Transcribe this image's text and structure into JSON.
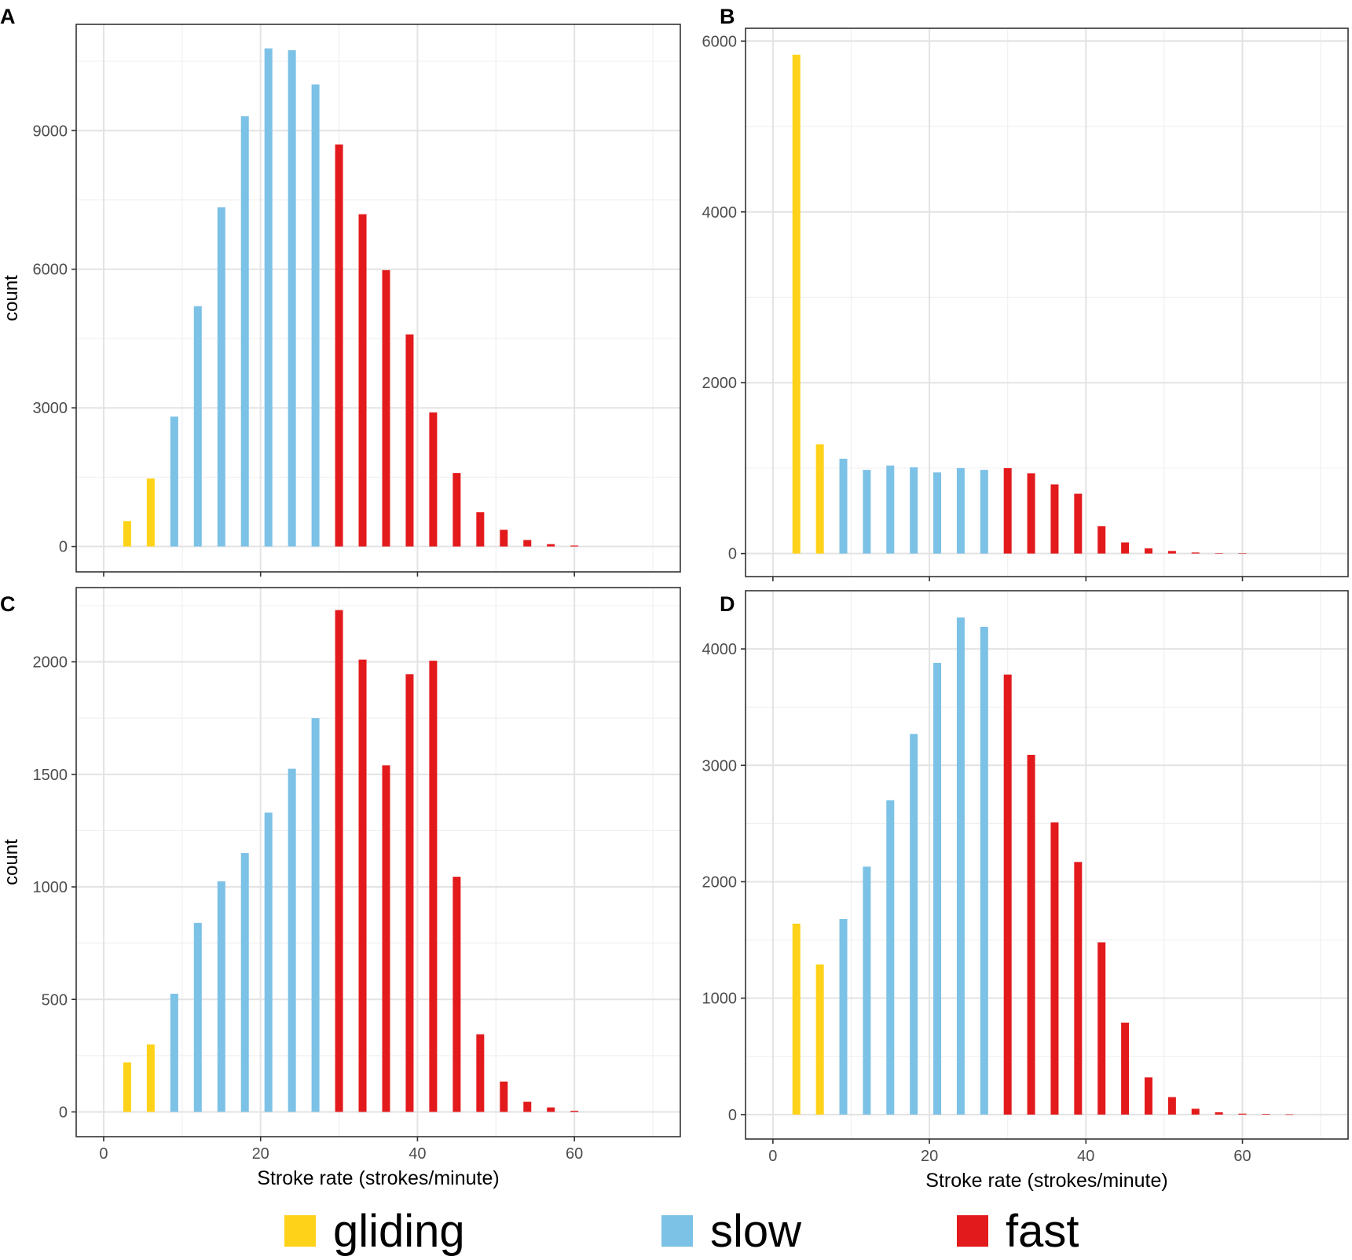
{
  "colors": {
    "gliding": "#FFD21A",
    "slow": "#7CC1E6",
    "fast": "#E31A1C"
  },
  "legend": [
    {
      "key": "gliding",
      "label": "gliding"
    },
    {
      "key": "slow",
      "label": "slow"
    },
    {
      "key": "fast",
      "label": "fast"
    }
  ],
  "chart_data": [
    {
      "panel": "A",
      "type": "bar",
      "xlabel": "",
      "ylabel": "count",
      "xlim": [
        -3.5,
        73.5
      ],
      "ylim": [
        -550,
        11300
      ],
      "xticks": [
        0,
        20,
        40,
        60
      ],
      "xtick_labels": false,
      "yticks": [
        0,
        3000,
        6000,
        9000
      ],
      "ytick_labels": [
        "0",
        "3000",
        "6000",
        "9000"
      ],
      "x": [
        3,
        6,
        9,
        12,
        15,
        18,
        21,
        24,
        27,
        30,
        33,
        36,
        39,
        42,
        45,
        48,
        51,
        54,
        57,
        60
      ],
      "values": [
        550,
        1470,
        2810,
        5200,
        7340,
        9310,
        10780,
        10740,
        10000,
        8700,
        7190,
        5980,
        4590,
        2900,
        1590,
        740,
        360,
        140,
        50,
        20
      ],
      "categories": [
        "gliding",
        "gliding",
        "slow",
        "slow",
        "slow",
        "slow",
        "slow",
        "slow",
        "slow",
        "fast",
        "fast",
        "fast",
        "fast",
        "fast",
        "fast",
        "fast",
        "fast",
        "fast",
        "fast",
        "fast"
      ]
    },
    {
      "panel": "B",
      "type": "bar",
      "xlabel": "",
      "ylabel": "",
      "xlim": [
        -3.5,
        73.5
      ],
      "ylim": [
        -270,
        6150
      ],
      "xticks": [
        0,
        20,
        40,
        60
      ],
      "xtick_labels": false,
      "yticks": [
        0,
        2000,
        4000,
        6000
      ],
      "ytick_labels": [
        "0",
        "2000",
        "4000",
        "6000"
      ],
      "x": [
        3,
        6,
        9,
        12,
        15,
        18,
        21,
        24,
        27,
        30,
        33,
        36,
        39,
        42,
        45,
        48,
        51,
        54,
        57,
        60
      ],
      "values": [
        5840,
        1280,
        1110,
        980,
        1030,
        1010,
        950,
        1000,
        980,
        1000,
        940,
        810,
        700,
        320,
        130,
        60,
        30,
        12,
        5,
        2
      ],
      "categories": [
        "gliding",
        "gliding",
        "slow",
        "slow",
        "slow",
        "slow",
        "slow",
        "slow",
        "slow",
        "fast",
        "fast",
        "fast",
        "fast",
        "fast",
        "fast",
        "fast",
        "fast",
        "fast",
        "fast",
        "fast"
      ]
    },
    {
      "panel": "C",
      "type": "bar",
      "xlabel": "Stroke rate (strokes/minute)",
      "ylabel": "count",
      "xlim": [
        -3.5,
        73.5
      ],
      "ylim": [
        -110,
        2330
      ],
      "xticks": [
        0,
        20,
        40,
        60
      ],
      "xtick_labels": [
        "0",
        "20",
        "40",
        "60"
      ],
      "yticks": [
        0,
        500,
        1000,
        1500,
        2000
      ],
      "ytick_labels": [
        "0",
        "500",
        "1000",
        "1500",
        "2000"
      ],
      "x": [
        3,
        6,
        9,
        12,
        15,
        18,
        21,
        24,
        27,
        30,
        33,
        36,
        39,
        42,
        45,
        48,
        51,
        54,
        57,
        60
      ],
      "values": [
        220,
        300,
        525,
        840,
        1025,
        1150,
        1330,
        1525,
        1750,
        2230,
        2010,
        1540,
        1945,
        2005,
        1045,
        345,
        135,
        45,
        20,
        5
      ],
      "categories": [
        "gliding",
        "gliding",
        "slow",
        "slow",
        "slow",
        "slow",
        "slow",
        "slow",
        "slow",
        "fast",
        "fast",
        "fast",
        "fast",
        "fast",
        "fast",
        "fast",
        "fast",
        "fast",
        "fast",
        "fast"
      ]
    },
    {
      "panel": "D",
      "type": "bar",
      "xlabel": "Stroke rate (strokes/minute)",
      "ylabel": "",
      "xlim": [
        -3.5,
        73.5
      ],
      "ylim": [
        -210,
        4500
      ],
      "xticks": [
        0,
        20,
        40,
        60
      ],
      "xtick_labels": [
        "0",
        "20",
        "40",
        "60"
      ],
      "yticks": [
        0,
        1000,
        2000,
        3000,
        4000
      ],
      "ytick_labels": [
        "0",
        "1000",
        "2000",
        "3000",
        "4000"
      ],
      "x": [
        3,
        6,
        9,
        12,
        15,
        18,
        21,
        24,
        27,
        30,
        33,
        36,
        39,
        42,
        45,
        48,
        51,
        54,
        57,
        60,
        63,
        66
      ],
      "values": [
        1640,
        1290,
        1680,
        2130,
        2700,
        3270,
        3880,
        4270,
        4190,
        3780,
        3090,
        2510,
        2170,
        1480,
        790,
        320,
        150,
        50,
        20,
        8,
        5,
        2
      ],
      "categories": [
        "gliding",
        "gliding",
        "slow",
        "slow",
        "slow",
        "slow",
        "slow",
        "slow",
        "slow",
        "fast",
        "fast",
        "fast",
        "fast",
        "fast",
        "fast",
        "fast",
        "fast",
        "fast",
        "fast",
        "fast",
        "fast",
        "fast"
      ]
    }
  ]
}
